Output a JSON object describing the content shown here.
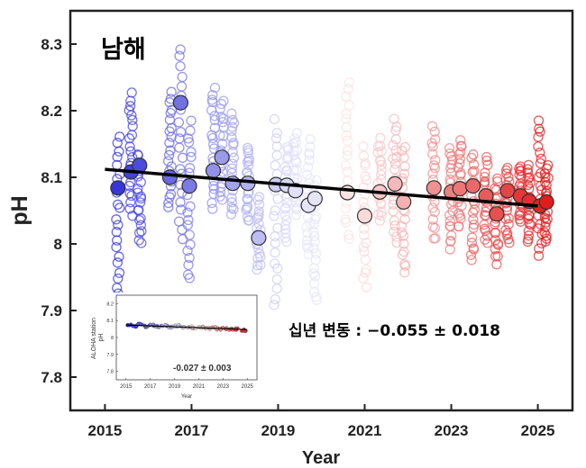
{
  "chart_data": [
    {
      "type": "scatter",
      "title": "남해",
      "xlabel": "Year",
      "ylabel": "pH",
      "xlim": [
        2014.2,
        2025.8
      ],
      "ylim": [
        7.75,
        8.35
      ],
      "x_ticks": [
        2015,
        2017,
        2019,
        2021,
        2023,
        2025
      ],
      "y_ticks": [
        7.8,
        7.9,
        8,
        8.1,
        8.2,
        8.3
      ],
      "y_tick_labels": [
        "7.8",
        "7.9",
        "8",
        "8.1",
        "8.2",
        "8.3"
      ],
      "annotation": "십년 변동 : −0.055 ± 0.018",
      "color_scale": {
        "start": "#2a2ad8",
        "mid": "#ffffff",
        "end": "#e01818"
      },
      "trend_line": {
        "x": [
          2015,
          2025
        ],
        "y": [
          8.112,
          8.057
        ],
        "color": "#000000"
      },
      "monthly_means": [
        {
          "x": 2015.3,
          "y": 8.084
        },
        {
          "x": 2015.6,
          "y": 8.108
        },
        {
          "x": 2015.8,
          "y": 8.118
        },
        {
          "x": 2016.5,
          "y": 8.1
        },
        {
          "x": 2016.75,
          "y": 8.212
        },
        {
          "x": 2016.95,
          "y": 8.087
        },
        {
          "x": 2017.5,
          "y": 8.11
        },
        {
          "x": 2017.7,
          "y": 8.13
        },
        {
          "x": 2017.95,
          "y": 8.091
        },
        {
          "x": 2018.3,
          "y": 8.091
        },
        {
          "x": 2018.55,
          "y": 8.009
        },
        {
          "x": 2018.95,
          "y": 8.089
        },
        {
          "x": 2019.2,
          "y": 8.088
        },
        {
          "x": 2019.4,
          "y": 8.08
        },
        {
          "x": 2019.7,
          "y": 8.058
        },
        {
          "x": 2019.85,
          "y": 8.068
        },
        {
          "x": 2020.6,
          "y": 8.077
        },
        {
          "x": 2021.0,
          "y": 8.042
        },
        {
          "x": 2021.35,
          "y": 8.078
        },
        {
          "x": 2021.7,
          "y": 8.09
        },
        {
          "x": 2021.9,
          "y": 8.063
        },
        {
          "x": 2022.6,
          "y": 8.084
        },
        {
          "x": 2023.0,
          "y": 8.078
        },
        {
          "x": 2023.2,
          "y": 8.083
        },
        {
          "x": 2023.5,
          "y": 8.087
        },
        {
          "x": 2023.8,
          "y": 8.072
        },
        {
          "x": 2024.05,
          "y": 8.045
        },
        {
          "x": 2024.3,
          "y": 8.08
        },
        {
          "x": 2024.6,
          "y": 8.072
        },
        {
          "x": 2024.8,
          "y": 8.064
        },
        {
          "x": 2025.05,
          "y": 8.057
        },
        {
          "x": 2025.2,
          "y": 8.063
        }
      ],
      "observation_columns": [
        {
          "x": 2015.3,
          "min": 7.92,
          "max": 8.17
        },
        {
          "x": 2015.6,
          "min": 8.04,
          "max": 8.23
        },
        {
          "x": 2015.8,
          "min": 8.0,
          "max": 8.14
        },
        {
          "x": 2016.5,
          "min": 8.05,
          "max": 8.23
        },
        {
          "x": 2016.75,
          "min": 8.0,
          "max": 8.3
        },
        {
          "x": 2016.95,
          "min": 7.94,
          "max": 8.19
        },
        {
          "x": 2017.5,
          "min": 8.05,
          "max": 8.24
        },
        {
          "x": 2017.7,
          "min": 8.06,
          "max": 8.22
        },
        {
          "x": 2017.95,
          "min": 8.04,
          "max": 8.2
        },
        {
          "x": 2018.3,
          "min": 8.03,
          "max": 8.15
        },
        {
          "x": 2018.55,
          "min": 7.96,
          "max": 8.07
        },
        {
          "x": 2018.95,
          "min": 7.9,
          "max": 8.19
        },
        {
          "x": 2019.2,
          "min": 8.0,
          "max": 8.15
        },
        {
          "x": 2019.4,
          "min": 8.04,
          "max": 8.17
        },
        {
          "x": 2019.7,
          "min": 7.98,
          "max": 8.16
        },
        {
          "x": 2019.85,
          "min": 7.91,
          "max": 8.1
        },
        {
          "x": 2020.6,
          "min": 8.0,
          "max": 8.25
        },
        {
          "x": 2021.0,
          "min": 7.93,
          "max": 8.15
        },
        {
          "x": 2021.35,
          "min": 8.03,
          "max": 8.16
        },
        {
          "x": 2021.7,
          "min": 8.0,
          "max": 8.19
        },
        {
          "x": 2021.9,
          "min": 7.95,
          "max": 8.15
        },
        {
          "x": 2022.6,
          "min": 8.0,
          "max": 8.18
        },
        {
          "x": 2023.0,
          "min": 7.99,
          "max": 8.15
        },
        {
          "x": 2023.2,
          "min": 8.02,
          "max": 8.16
        },
        {
          "x": 2023.5,
          "min": 7.97,
          "max": 8.14
        },
        {
          "x": 2023.8,
          "min": 8.0,
          "max": 8.13
        },
        {
          "x": 2024.05,
          "min": 7.97,
          "max": 8.1
        },
        {
          "x": 2024.3,
          "min": 8.0,
          "max": 8.12
        },
        {
          "x": 2024.6,
          "min": 8.03,
          "max": 8.12
        },
        {
          "x": 2024.8,
          "min": 8.0,
          "max": 8.12
        },
        {
          "x": 2025.05,
          "min": 7.98,
          "max": 8.19
        },
        {
          "x": 2025.2,
          "min": 8.0,
          "max": 8.12
        }
      ]
    },
    {
      "type": "scatter",
      "ylabel_lines": [
        "ALOHA station",
        "pH"
      ],
      "xlabel": "Year",
      "xlim": [
        2014.2,
        2025.8
      ],
      "ylim": [
        7.75,
        8.25
      ],
      "x_ticks": [
        2015,
        2017,
        2019,
        2021,
        2023,
        2025
      ],
      "y_ticks": [
        7.8,
        7.9,
        8,
        8.1,
        8.2
      ],
      "y_tick_labels": [
        "7.8",
        "7.9",
        "8",
        "8.1",
        "8.2"
      ],
      "annotation": "-0.027 ± 0.003",
      "trend_line": {
        "x": [
          2015,
          2025
        ],
        "y": [
          8.074,
          8.047
        ]
      },
      "series": [
        {
          "x": [
            2015.2,
            2015.7,
            2016.2,
            2016.7,
            2017.2,
            2017.7,
            2018.2,
            2018.7,
            2019.2,
            2019.7,
            2020.2,
            2020.7,
            2021.2,
            2021.7,
            2022.2,
            2022.7,
            2023.2,
            2023.7,
            2024.2,
            2024.7
          ],
          "y": [
            8.075,
            8.068,
            8.079,
            8.066,
            8.072,
            8.065,
            8.07,
            8.062,
            8.068,
            8.06,
            8.064,
            8.058,
            8.061,
            8.055,
            8.057,
            8.05,
            8.054,
            8.048,
            8.05,
            8.044
          ]
        }
      ]
    }
  ]
}
